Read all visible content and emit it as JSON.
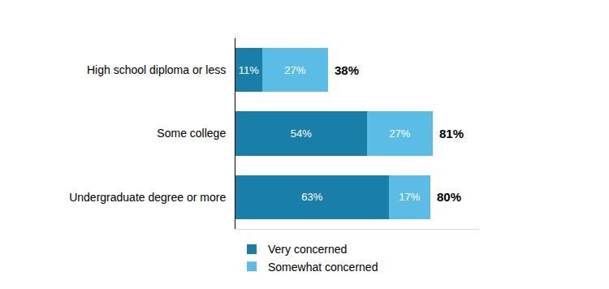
{
  "chart_data": {
    "type": "bar",
    "orientation": "horizontal",
    "stacked": true,
    "data_labels": true,
    "tick_labels": "y",
    "grid": false,
    "legend": "bottom",
    "categories": [
      "High school diploma or less",
      "Some college",
      "Undergraduate degree or more"
    ],
    "series": [
      {
        "name": "Very concerned",
        "color": "#1a7fa8",
        "values": [
          11,
          54,
          63
        ],
        "value_labels": [
          "11%",
          "54%",
          "63%"
        ]
      },
      {
        "name": "Somewhat concerned",
        "color": "#5bbde6",
        "values": [
          27,
          27,
          17
        ],
        "value_labels": [
          "27%",
          "27%",
          "17%"
        ]
      }
    ],
    "totals": [
      38,
      81,
      80
    ],
    "total_labels": [
      "38%",
      "81%",
      "80%"
    ],
    "xlim": [
      0,
      100
    ]
  }
}
